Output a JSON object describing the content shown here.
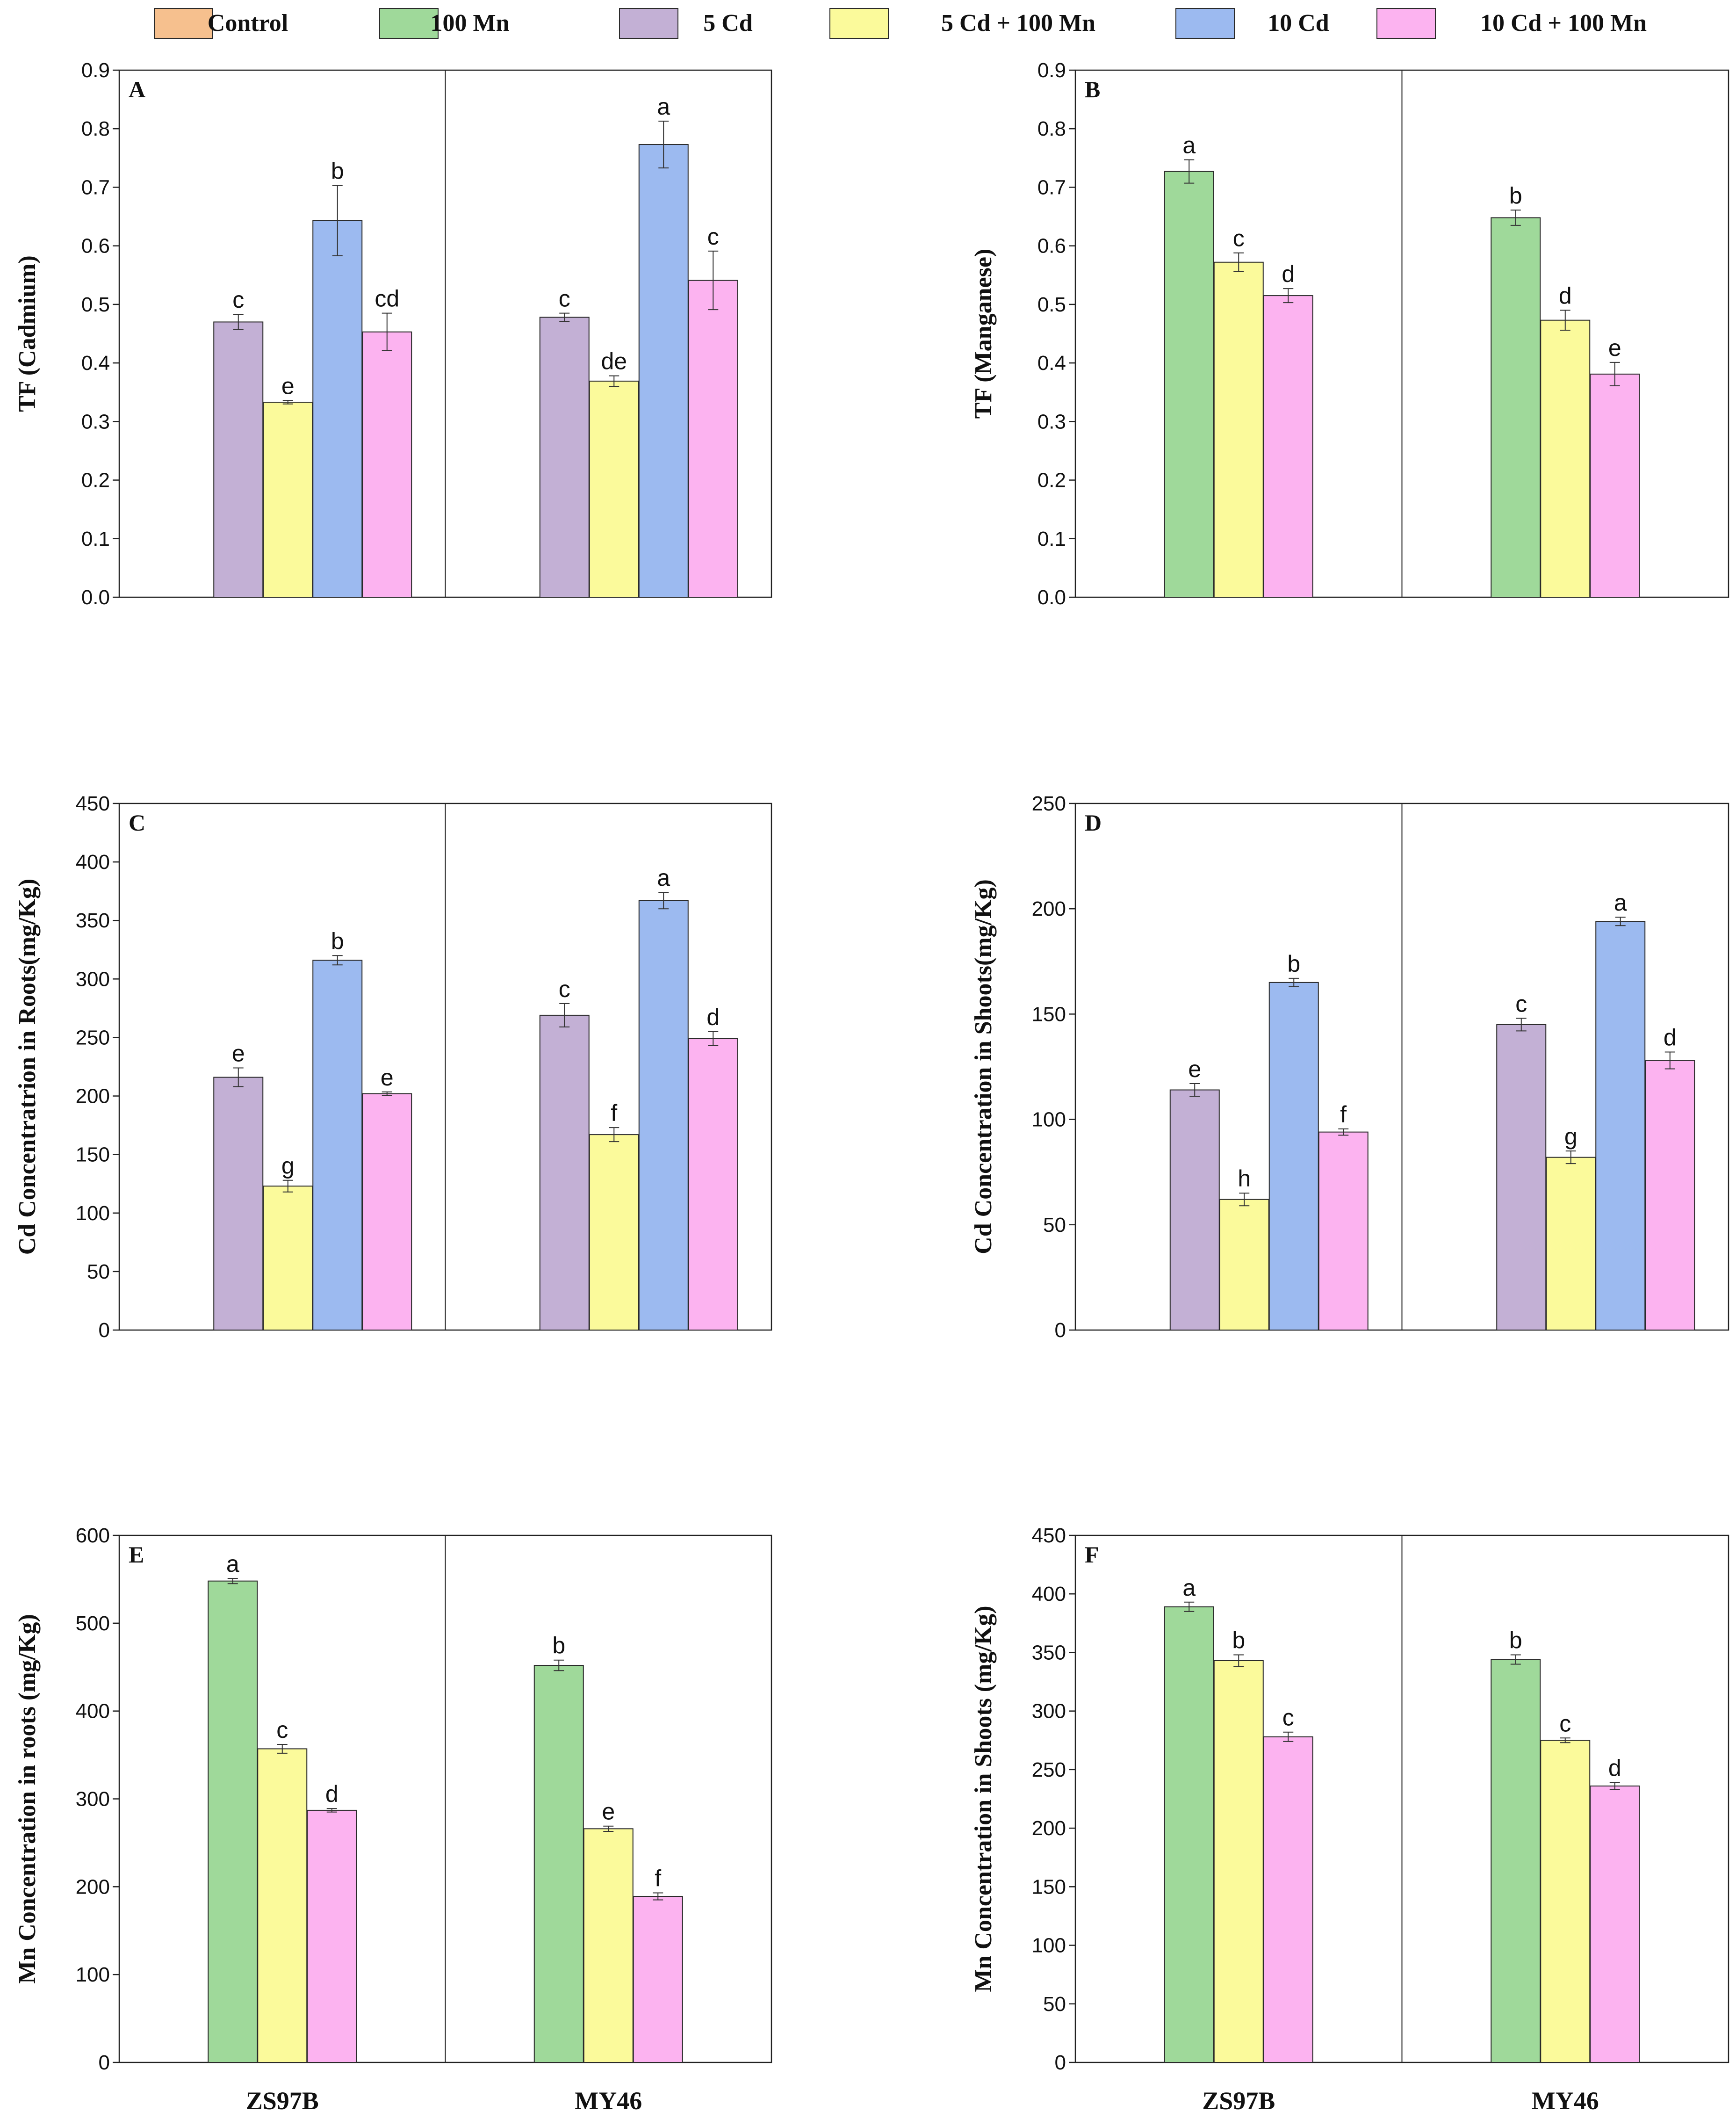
{
  "legend": [
    {
      "key": "control",
      "label": "Control",
      "color": "#f6c08e"
    },
    {
      "key": "mn100",
      "label": "100 Mn",
      "color": "#9fd99a"
    },
    {
      "key": "cd5",
      "label": "5 Cd",
      "color": "#c3b0d5"
    },
    {
      "key": "cd5mn",
      "label": "5 Cd + 100 Mn",
      "color": "#fbfa9b"
    },
    {
      "key": "cd10",
      "label": "10 Cd",
      "color": "#9cbaf0"
    },
    {
      "key": "cd10mn",
      "label": "10 Cd + 100 Mn",
      "color": "#fcb3f0"
    }
  ],
  "chart_data": [
    {
      "type": "bar",
      "panel": "A",
      "ylabel": "TF (Cadmium)",
      "ylim": [
        0,
        0.9
      ],
      "yticks": [
        0.0,
        0.1,
        0.2,
        0.3,
        0.4,
        0.5,
        0.6,
        0.7,
        0.8,
        0.9
      ],
      "tick_decimals": 1,
      "categories": [
        "ZS97B",
        "MY46"
      ],
      "show_xlabels": false,
      "series": [
        {
          "key": "cd5",
          "name": "5 Cd",
          "values": [
            0.47,
            0.478
          ],
          "errors": [
            0.013,
            0.007
          ],
          "letters": [
            "c",
            "c"
          ]
        },
        {
          "key": "cd5mn",
          "name": "5 Cd + 100 Mn",
          "values": [
            0.333,
            0.369
          ],
          "errors": [
            0.003,
            0.009
          ],
          "letters": [
            "e",
            "de"
          ]
        },
        {
          "key": "cd10",
          "name": "10 Cd",
          "values": [
            0.643,
            0.773
          ],
          "errors": [
            0.06,
            0.04
          ],
          "letters": [
            "b",
            "a"
          ]
        },
        {
          "key": "cd10mn",
          "name": "10 Cd + 100 Mn",
          "values": [
            0.453,
            0.541
          ],
          "errors": [
            0.032,
            0.05
          ],
          "letters": [
            "cd",
            "c"
          ]
        }
      ]
    },
    {
      "type": "bar",
      "panel": "B",
      "ylabel": "TF (Manganese)",
      "ylim": [
        0,
        0.9
      ],
      "yticks": [
        0.0,
        0.1,
        0.2,
        0.3,
        0.4,
        0.5,
        0.6,
        0.7,
        0.8,
        0.9
      ],
      "tick_decimals": 1,
      "categories": [
        "ZS97B",
        "MY46"
      ],
      "show_xlabels": false,
      "series": [
        {
          "key": "mn100",
          "name": "100 Mn",
          "values": [
            0.727,
            0.648
          ],
          "errors": [
            0.02,
            0.013
          ],
          "letters": [
            "a",
            "b"
          ]
        },
        {
          "key": "cd5mn",
          "name": "5 Cd + 100 Mn",
          "values": [
            0.572,
            0.473
          ],
          "errors": [
            0.016,
            0.017
          ],
          "letters": [
            "c",
            "d"
          ]
        },
        {
          "key": "cd10mn",
          "name": "10 Cd + 100 Mn",
          "values": [
            0.515,
            0.381
          ],
          "errors": [
            0.012,
            0.02
          ],
          "letters": [
            "d",
            "e"
          ]
        }
      ]
    },
    {
      "type": "bar",
      "panel": "C",
      "ylabel": "Cd Concentratrion in Roots(mg/Kg)",
      "ylim": [
        0,
        450
      ],
      "yticks": [
        0,
        50,
        100,
        150,
        200,
        250,
        300,
        350,
        400,
        450
      ],
      "tick_decimals": 0,
      "categories": [
        "ZS97B",
        "MY46"
      ],
      "show_xlabels": false,
      "series": [
        {
          "key": "cd5",
          "name": "5 Cd",
          "values": [
            216,
            269
          ],
          "errors": [
            8,
            10
          ],
          "letters": [
            "e",
            "c"
          ]
        },
        {
          "key": "cd5mn",
          "name": "5 Cd + 100 Mn",
          "values": [
            123,
            167
          ],
          "errors": [
            5,
            6
          ],
          "letters": [
            "g",
            "f"
          ]
        },
        {
          "key": "cd10",
          "name": "10 Cd",
          "values": [
            316,
            367
          ],
          "errors": [
            4,
            7
          ],
          "letters": [
            "b",
            "a"
          ]
        },
        {
          "key": "cd10mn",
          "name": "10 Cd + 100 Mn",
          "values": [
            202,
            249
          ],
          "errors": [
            1.5,
            6
          ],
          "letters": [
            "e",
            "d"
          ]
        }
      ]
    },
    {
      "type": "bar",
      "panel": "D",
      "ylabel": "Cd Concentration in Shoots(mg/Kg)",
      "ylim": [
        0,
        250
      ],
      "yticks": [
        0,
        50,
        100,
        150,
        200,
        250
      ],
      "tick_decimals": 0,
      "categories": [
        "ZS97B",
        "MY46"
      ],
      "show_xlabels": false,
      "series": [
        {
          "key": "cd5",
          "name": "5 Cd",
          "values": [
            114,
            145
          ],
          "errors": [
            3,
            3
          ],
          "letters": [
            "e",
            "c"
          ]
        },
        {
          "key": "cd5mn",
          "name": "5 Cd + 100 Mn",
          "values": [
            62,
            82
          ],
          "errors": [
            3,
            3
          ],
          "letters": [
            "h",
            "g"
          ]
        },
        {
          "key": "cd10",
          "name": "10 Cd",
          "values": [
            165,
            194
          ],
          "errors": [
            2,
            2
          ],
          "letters": [
            "b",
            "a"
          ]
        },
        {
          "key": "cd10mn",
          "name": "10 Cd + 100 Mn",
          "values": [
            94,
            128
          ],
          "errors": [
            1.5,
            4
          ],
          "letters": [
            "f",
            "d"
          ]
        }
      ]
    },
    {
      "type": "bar",
      "panel": "E",
      "ylabel": "Mn Concentration in roots (mg/Kg)",
      "ylim": [
        0,
        600
      ],
      "yticks": [
        0,
        100,
        200,
        300,
        400,
        500,
        600
      ],
      "tick_decimals": 0,
      "categories": [
        "ZS97B",
        "MY46"
      ],
      "show_xlabels": true,
      "series": [
        {
          "key": "mn100",
          "name": "100 Mn",
          "values": [
            548,
            452
          ],
          "errors": [
            3,
            6
          ],
          "letters": [
            "a",
            "b"
          ]
        },
        {
          "key": "cd5mn",
          "name": "5 Cd + 100 Mn",
          "values": [
            357,
            266
          ],
          "errors": [
            5,
            3
          ],
          "letters": [
            "c",
            "e"
          ]
        },
        {
          "key": "cd10mn",
          "name": "10 Cd + 100 Mn",
          "values": [
            287,
            189
          ],
          "errors": [
            2,
            4
          ],
          "letters": [
            "d",
            "f"
          ]
        }
      ]
    },
    {
      "type": "bar",
      "panel": "F",
      "ylabel": "Mn Concentration in Shoots (mg/Kg)",
      "ylim": [
        0,
        450
      ],
      "yticks": [
        0,
        50,
        100,
        150,
        200,
        250,
        300,
        350,
        400,
        450
      ],
      "tick_decimals": 0,
      "categories": [
        "ZS97B",
        "MY46"
      ],
      "show_xlabels": true,
      "series": [
        {
          "key": "mn100",
          "name": "100 Mn",
          "values": [
            389,
            344
          ],
          "errors": [
            4,
            4
          ],
          "letters": [
            "a",
            "b"
          ]
        },
        {
          "key": "cd5mn",
          "name": "5 Cd + 100 Mn",
          "values": [
            343,
            275
          ],
          "errors": [
            5,
            2
          ],
          "letters": [
            "b",
            "c"
          ]
        },
        {
          "key": "cd10mn",
          "name": "10 Cd + 100 Mn",
          "values": [
            278,
            236
          ],
          "errors": [
            4,
            3
          ],
          "letters": [
            "c",
            "d"
          ]
        }
      ]
    }
  ]
}
